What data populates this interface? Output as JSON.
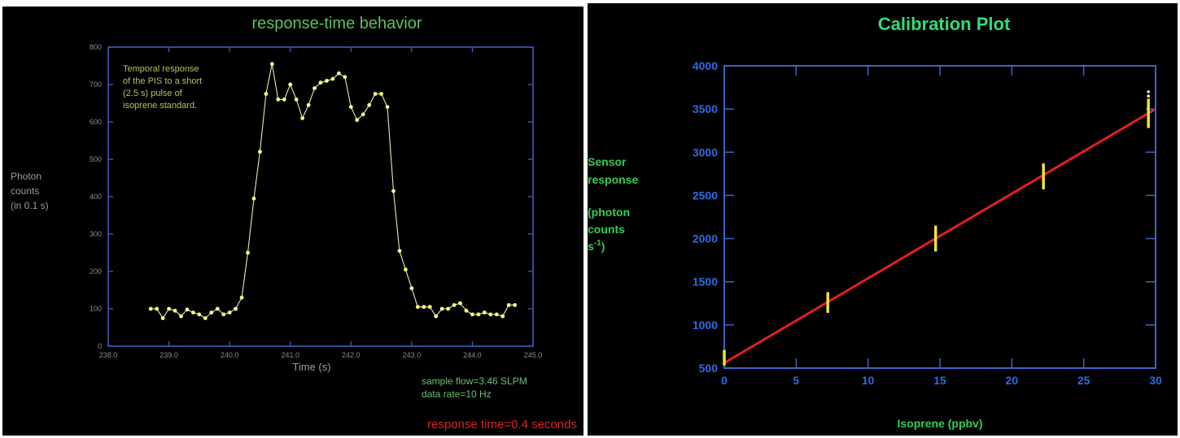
{
  "chart_data": [
    {
      "type": "line",
      "title": "response-time behavior",
      "xlabel": "Time (s)",
      "ylabel": [
        "Photon",
        "counts",
        "(in 0.1 s)"
      ],
      "xlim": [
        238.0,
        245.0
      ],
      "ylim": [
        0,
        800
      ],
      "xticks": [
        238.0,
        239.0,
        240.0,
        241.0,
        242.0,
        243.0,
        244.0,
        245.0
      ],
      "xtick_labels": [
        "238.0",
        "239.0",
        "240.0",
        "241.0",
        "242.0",
        "243.0",
        "244.0",
        "245.0"
      ],
      "yticks": [
        0,
        100,
        200,
        300,
        400,
        500,
        600,
        700,
        800
      ],
      "ytick_labels": [
        "0",
        "100",
        "200",
        "300",
        "400",
        "500",
        "600",
        "700",
        "800"
      ],
      "annotation_lines": [
        "Temporal response",
        "of the PIS to a short",
        "(2.5 s) pulse of",
        "isoprene standard."
      ],
      "footnote_lines": [
        "sample flow=3.46 SLPM",
        "data rate=10 Hz"
      ],
      "highlight_note": "response time=0.4 seconds",
      "x": [
        238.7,
        238.8,
        238.9,
        239.0,
        239.1,
        239.2,
        239.3,
        239.4,
        239.5,
        239.6,
        239.7,
        239.8,
        239.9,
        240.0,
        240.1,
        240.2,
        240.3,
        240.4,
        240.5,
        240.6,
        240.7,
        240.8,
        240.9,
        241.0,
        241.1,
        241.2,
        241.3,
        241.4,
        241.5,
        241.6,
        241.7,
        241.8,
        241.9,
        242.0,
        242.1,
        242.2,
        242.3,
        242.4,
        242.5,
        242.6,
        242.7,
        242.8,
        242.9,
        243.0,
        243.1,
        243.2,
        243.3,
        243.4,
        243.5,
        243.6,
        243.7,
        243.8,
        243.9,
        244.0,
        244.1,
        244.2,
        244.3,
        244.4,
        244.5,
        244.6,
        244.7
      ],
      "y": [
        100,
        100,
        75,
        100,
        95,
        80,
        98,
        90,
        85,
        75,
        90,
        100,
        85,
        90,
        100,
        130,
        250,
        395,
        520,
        675,
        755,
        660,
        660,
        700,
        660,
        610,
        645,
        690,
        705,
        710,
        715,
        730,
        720,
        640,
        605,
        620,
        645,
        675,
        675,
        640,
        415,
        255,
        205,
        155,
        105,
        105,
        105,
        80,
        100,
        100,
        110,
        115,
        95,
        85,
        85,
        90,
        85,
        85,
        80,
        110,
        110
      ],
      "colors": {
        "line": "#e8e8b8",
        "marker": "#ffff80",
        "axis": "#3c64c8",
        "title": "#5fbf60",
        "highlight": "#e02020"
      }
    },
    {
      "type": "scatter",
      "title": "Calibration Plot",
      "xlabel": "Isoprene (ppbv)",
      "ylabel": [
        "Sensor",
        "response",
        "",
        "(photon",
        "counts",
        "s",
        "-1",
        ")"
      ],
      "xlim": [
        0,
        30
      ],
      "ylim": [
        500,
        4000
      ],
      "xticks": [
        0,
        5,
        10,
        15,
        20,
        25,
        30
      ],
      "xtick_labels": [
        "0",
        "5",
        "10",
        "15",
        "20",
        "25",
        "30"
      ],
      "yticks": [
        500,
        1000,
        1500,
        2000,
        2500,
        3000,
        3500,
        4000
      ],
      "ytick_labels": [
        "500",
        "1000",
        "1500",
        "2000",
        "2500",
        "3000",
        "3500",
        "4000"
      ],
      "points": [
        {
          "x": 0.0,
          "y": 620,
          "err": 90
        },
        {
          "x": 7.2,
          "y": 1260,
          "err": 120
        },
        {
          "x": 14.7,
          "y": 2000,
          "err": 150
        },
        {
          "x": 22.2,
          "y": 2720,
          "err": 150
        },
        {
          "x": 29.5,
          "y": 3450,
          "err": 170
        }
      ],
      "fit": {
        "slope": 98.0,
        "intercept": 560
      },
      "colors": {
        "fit": "#e02020",
        "points": "#f0e040",
        "axis": "#3c64c8",
        "tick_text": "#2d6be0",
        "title": "#33dd77"
      }
    }
  ]
}
